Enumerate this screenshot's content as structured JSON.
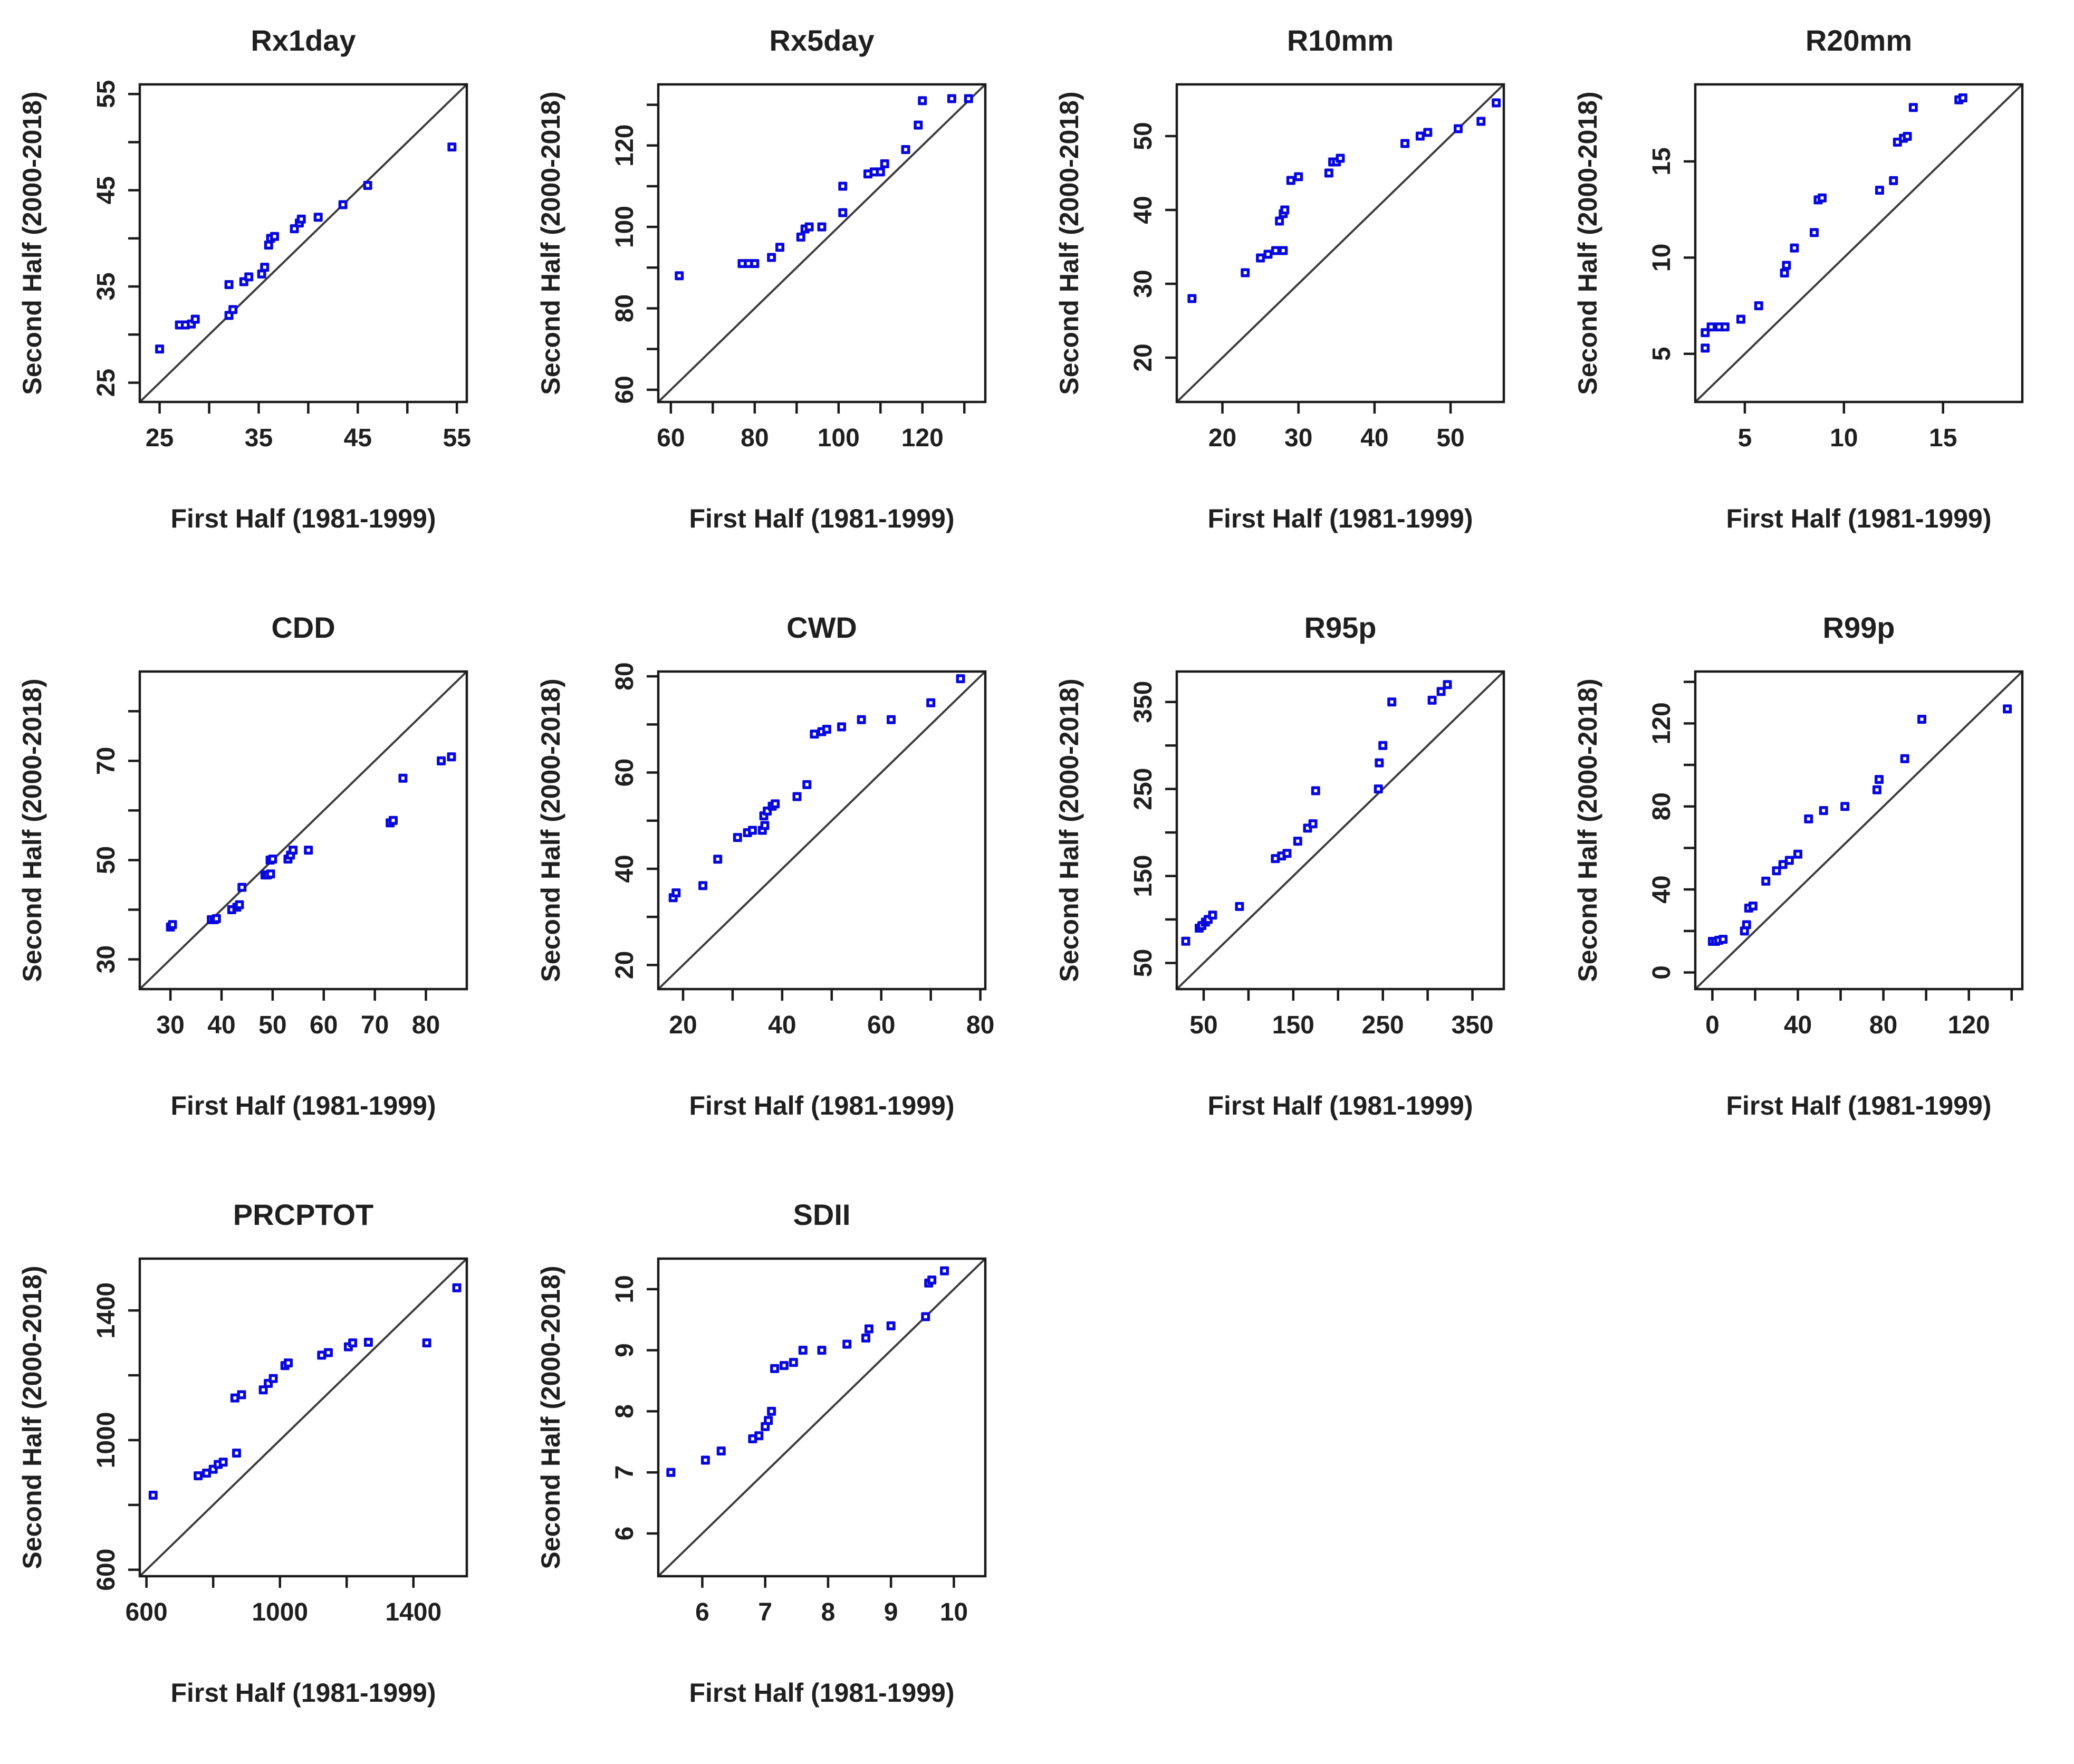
{
  "figure": {
    "description_title": "",
    "xlabel_shared": "First Half (1981-1999)",
    "ylabel_shared": "Second Half (2000-2018)"
  },
  "colors": {
    "marker": "#0808dd",
    "marker_center": "#ffffff",
    "identity_line": "#3d3d3d",
    "axis": "#1a1a1a",
    "text": "#1f1f1f",
    "background": "#ffffff"
  },
  "chart_data": [
    {
      "type": "scatter",
      "title": "Rx1day",
      "xlabel": "First Half (1981-1999)",
      "ylabel": "Second Half (2000-2018)",
      "xlim": [
        23,
        56
      ],
      "ylim": [
        23,
        56
      ],
      "xticks_all": [
        25,
        30,
        35,
        40,
        45,
        50,
        55
      ],
      "xticks_labeled": [
        25,
        35,
        45,
        55
      ],
      "yticks_all": [
        25,
        30,
        35,
        40,
        45,
        50,
        55
      ],
      "yticks_labeled": [
        25,
        35,
        45,
        55
      ],
      "identity_line": true,
      "grid": false,
      "legend": null,
      "points": [
        [
          25,
          28.5
        ],
        [
          27,
          31
        ],
        [
          27.6,
          31
        ],
        [
          28.2,
          31.1
        ],
        [
          28.6,
          31.6
        ],
        [
          32,
          32
        ],
        [
          32.4,
          32.6
        ],
        [
          32,
          35.2
        ],
        [
          33.5,
          35.5
        ],
        [
          34,
          36
        ],
        [
          35.3,
          36.3
        ],
        [
          35.6,
          37
        ],
        [
          36,
          39.3
        ],
        [
          36.2,
          40
        ],
        [
          36.6,
          40.2
        ],
        [
          38.6,
          41
        ],
        [
          39.1,
          41.6
        ],
        [
          39.3,
          42
        ],
        [
          41,
          42.2
        ],
        [
          43.5,
          43.5
        ],
        [
          46,
          45.5
        ],
        [
          54.5,
          49.5
        ]
      ]
    },
    {
      "type": "scatter",
      "title": "Rx5day",
      "xlabel": "First Half (1981-1999)",
      "ylabel": "Second Half (2000-2018)",
      "xlim": [
        57,
        135
      ],
      "ylim": [
        57,
        135
      ],
      "xticks_all": [
        60,
        70,
        80,
        90,
        100,
        110,
        120,
        130
      ],
      "xticks_labeled": [
        60,
        80,
        100,
        120
      ],
      "yticks_all": [
        60,
        70,
        80,
        90,
        100,
        110,
        120,
        130
      ],
      "yticks_labeled": [
        60,
        80,
        100,
        120
      ],
      "identity_line": true,
      "grid": false,
      "legend": null,
      "points": [
        [
          62,
          88
        ],
        [
          77,
          91
        ],
        [
          78.5,
          91
        ],
        [
          80,
          91
        ],
        [
          84,
          92.5
        ],
        [
          86,
          95
        ],
        [
          91,
          97.5
        ],
        [
          92,
          99.5
        ],
        [
          93,
          100
        ],
        [
          96,
          100
        ],
        [
          101,
          103.5
        ],
        [
          101,
          110
        ],
        [
          107,
          113
        ],
        [
          108.5,
          113.5
        ],
        [
          110,
          113.5
        ],
        [
          111,
          115.5
        ],
        [
          116,
          119
        ],
        [
          119,
          125
        ],
        [
          120,
          131
        ],
        [
          127,
          131.5
        ],
        [
          131,
          131.5
        ]
      ]
    },
    {
      "type": "scatter",
      "title": "R10mm",
      "xlabel": "First Half (1981-1999)",
      "ylabel": "Second Half (2000-2018)",
      "xlim": [
        14,
        57
      ],
      "ylim": [
        14,
        57
      ],
      "xticks_all": [
        20,
        30,
        40,
        50
      ],
      "xticks_labeled": [
        20,
        30,
        40,
        50
      ],
      "yticks_all": [
        20,
        30,
        40,
        50
      ],
      "yticks_labeled": [
        20,
        30,
        40,
        50
      ],
      "identity_line": true,
      "grid": false,
      "legend": null,
      "points": [
        [
          16,
          28
        ],
        [
          23,
          31.5
        ],
        [
          25,
          33.5
        ],
        [
          26,
          34
        ],
        [
          27,
          34.5
        ],
        [
          28,
          34.5
        ],
        [
          27.5,
          38.5
        ],
        [
          28,
          39.5
        ],
        [
          28.2,
          40
        ],
        [
          29,
          44
        ],
        [
          30,
          44.5
        ],
        [
          34,
          45
        ],
        [
          34.5,
          46.5
        ],
        [
          35,
          46.5
        ],
        [
          35.5,
          47
        ],
        [
          44,
          49
        ],
        [
          46,
          50
        ],
        [
          47,
          50.5
        ],
        [
          51,
          51
        ],
        [
          54,
          52
        ],
        [
          56,
          54.5
        ]
      ]
    },
    {
      "type": "scatter",
      "title": "R20mm",
      "xlabel": "First Half (1981-1999)",
      "ylabel": "Second Half (2000-2018)",
      "xlim": [
        2.5,
        19
      ],
      "ylim": [
        2.5,
        19
      ],
      "xticks_all": [
        5,
        10,
        15
      ],
      "xticks_labeled": [
        5,
        10,
        15
      ],
      "yticks_all": [
        5,
        10,
        15
      ],
      "yticks_labeled": [
        5,
        10,
        15
      ],
      "identity_line": true,
      "grid": false,
      "legend": null,
      "points": [
        [
          3,
          5.3
        ],
        [
          3,
          6.1
        ],
        [
          3.3,
          6.4
        ],
        [
          3.7,
          6.4
        ],
        [
          4,
          6.4
        ],
        [
          4.8,
          6.8
        ],
        [
          5.7,
          7.5
        ],
        [
          7,
          9.2
        ],
        [
          7.1,
          9.6
        ],
        [
          7.5,
          10.5
        ],
        [
          8.5,
          11.3
        ],
        [
          8.7,
          13
        ],
        [
          8.9,
          13.1
        ],
        [
          11.8,
          13.5
        ],
        [
          12.5,
          14
        ],
        [
          12.7,
          16
        ],
        [
          13,
          16.2
        ],
        [
          13.2,
          16.3
        ],
        [
          13.5,
          17.8
        ],
        [
          15.8,
          18.2
        ],
        [
          16,
          18.3
        ]
      ]
    },
    {
      "type": "scatter",
      "title": "CDD",
      "xlabel": "First Half (1981-1999)",
      "ylabel": "Second Half (2000-2018)",
      "xlim": [
        24,
        88
      ],
      "ylim": [
        24,
        88
      ],
      "xticks_all": [
        30,
        40,
        50,
        60,
        70,
        80
      ],
      "xticks_labeled": [
        30,
        40,
        50,
        60,
        70,
        80
      ],
      "yticks_all": [
        30,
        40,
        50,
        60,
        70,
        80
      ],
      "yticks_labeled": [
        30,
        50,
        70
      ],
      "identity_line": true,
      "grid": false,
      "legend": null,
      "points": [
        [
          30,
          36.5
        ],
        [
          30.4,
          37
        ],
        [
          38,
          38
        ],
        [
          38.6,
          38
        ],
        [
          39,
          38.2
        ],
        [
          42,
          40
        ],
        [
          43,
          40.5
        ],
        [
          43.5,
          41
        ],
        [
          44,
          44.5
        ],
        [
          48.5,
          47
        ],
        [
          49,
          47
        ],
        [
          49.6,
          47.2
        ],
        [
          49.5,
          50
        ],
        [
          50,
          50.2
        ],
        [
          53,
          50.2
        ],
        [
          53.5,
          51
        ],
        [
          54,
          52
        ],
        [
          57,
          52
        ],
        [
          73,
          57.5
        ],
        [
          73.6,
          58
        ],
        [
          75.5,
          66.5
        ],
        [
          83,
          70
        ],
        [
          85,
          70.8
        ]
      ]
    },
    {
      "type": "scatter",
      "title": "CWD",
      "xlabel": "First Half (1981-1999)",
      "ylabel": "Second Half (2000-2018)",
      "xlim": [
        15,
        81
      ],
      "ylim": [
        15,
        81
      ],
      "xticks_all": [
        20,
        30,
        40,
        50,
        60,
        70,
        80
      ],
      "xticks_labeled": [
        20,
        40,
        60,
        80
      ],
      "yticks_all": [
        20,
        30,
        40,
        50,
        60,
        70,
        80
      ],
      "yticks_labeled": [
        20,
        40,
        60,
        80
      ],
      "identity_line": true,
      "grid": false,
      "legend": null,
      "points": [
        [
          18,
          34
        ],
        [
          18.6,
          35
        ],
        [
          24,
          36.5
        ],
        [
          27,
          42
        ],
        [
          31,
          46.5
        ],
        [
          33,
          47.5
        ],
        [
          34,
          48
        ],
        [
          36,
          48
        ],
        [
          36.5,
          49
        ],
        [
          36.3,
          51
        ],
        [
          37,
          52
        ],
        [
          38,
          53
        ],
        [
          38.6,
          53.5
        ],
        [
          43,
          55
        ],
        [
          45,
          57.5
        ],
        [
          46.5,
          68
        ],
        [
          48,
          68.5
        ],
        [
          49,
          69
        ],
        [
          52,
          69.5
        ],
        [
          56,
          71
        ],
        [
          62,
          71
        ],
        [
          70,
          74.5
        ],
        [
          76,
          79.5
        ]
      ]
    },
    {
      "type": "scatter",
      "title": "R95p",
      "xlabel": "First Half (1981-1999)",
      "ylabel": "Second Half (2000-2018)",
      "xlim": [
        20,
        385
      ],
      "ylim": [
        20,
        385
      ],
      "xticks_all": [
        50,
        100,
        150,
        200,
        250,
        300,
        350
      ],
      "xticks_labeled": [
        50,
        150,
        250,
        350
      ],
      "yticks_all": [
        50,
        100,
        150,
        200,
        250,
        300,
        350
      ],
      "yticks_labeled": [
        50,
        150,
        250,
        350
      ],
      "identity_line": true,
      "grid": false,
      "legend": null,
      "points": [
        [
          30,
          75
        ],
        [
          45,
          90
        ],
        [
          48,
          93
        ],
        [
          52,
          97
        ],
        [
          55,
          100
        ],
        [
          60,
          105
        ],
        [
          90,
          115
        ],
        [
          130,
          170
        ],
        [
          137,
          173
        ],
        [
          143,
          176
        ],
        [
          155,
          190
        ],
        [
          166,
          205
        ],
        [
          172,
          210
        ],
        [
          175,
          248
        ],
        [
          245,
          250
        ],
        [
          246,
          280
        ],
        [
          250,
          300
        ],
        [
          260,
          350
        ],
        [
          305,
          352
        ],
        [
          315,
          362
        ],
        [
          322,
          370
        ]
      ]
    },
    {
      "type": "scatter",
      "title": "R99p",
      "xlabel": "First Half (1981-1999)",
      "ylabel": "Second Half (2000-2018)",
      "xlim": [
        -8,
        145
      ],
      "ylim": [
        -8,
        145
      ],
      "xticks_all": [
        0,
        20,
        40,
        60,
        80,
        100,
        120,
        140
      ],
      "xticks_labeled": [
        0,
        40,
        80,
        120
      ],
      "yticks_all": [
        0,
        20,
        40,
        60,
        80,
        100,
        120,
        140
      ],
      "yticks_labeled": [
        0,
        40,
        80,
        120
      ],
      "identity_line": true,
      "grid": false,
      "legend": null,
      "points": [
        [
          0,
          15
        ],
        [
          1.5,
          15
        ],
        [
          3,
          15.5
        ],
        [
          5,
          16
        ],
        [
          15,
          20
        ],
        [
          16,
          23
        ],
        [
          17,
          31
        ],
        [
          19,
          32
        ],
        [
          25,
          44
        ],
        [
          30,
          49
        ],
        [
          33,
          52
        ],
        [
          36,
          54
        ],
        [
          40,
          57
        ],
        [
          45,
          74
        ],
        [
          52,
          78
        ],
        [
          62,
          80
        ],
        [
          77,
          88
        ],
        [
          78,
          93
        ],
        [
          90,
          103
        ],
        [
          98,
          122
        ],
        [
          138,
          127
        ]
      ]
    },
    {
      "type": "scatter",
      "title": "PRCPTOT",
      "xlabel": "First Half (1981-1999)",
      "ylabel": "Second Half (2000-2018)",
      "xlim": [
        580,
        1560
      ],
      "ylim": [
        580,
        1560
      ],
      "xticks_all": [
        600,
        800,
        1000,
        1200,
        1400
      ],
      "xticks_labeled": [
        600,
        1000,
        1400
      ],
      "yticks_all": [
        600,
        800,
        1000,
        1200,
        1400
      ],
      "yticks_labeled": [
        600,
        1000,
        1400
      ],
      "identity_line": true,
      "grid": false,
      "legend": null,
      "points": [
        [
          620,
          830
        ],
        [
          755,
          890
        ],
        [
          780,
          898
        ],
        [
          800,
          910
        ],
        [
          815,
          925
        ],
        [
          830,
          932
        ],
        [
          870,
          960
        ],
        [
          865,
          1130
        ],
        [
          885,
          1140
        ],
        [
          950,
          1155
        ],
        [
          965,
          1175
        ],
        [
          980,
          1190
        ],
        [
          1015,
          1230
        ],
        [
          1025,
          1238
        ],
        [
          1125,
          1262
        ],
        [
          1145,
          1270
        ],
        [
          1205,
          1288
        ],
        [
          1218,
          1300
        ],
        [
          1265,
          1302
        ],
        [
          1440,
          1300
        ],
        [
          1530,
          1470
        ]
      ]
    },
    {
      "type": "scatter",
      "title": "SDII",
      "xlabel": "First Half (1981-1999)",
      "ylabel": "Second Half (2000-2018)",
      "xlim": [
        5.3,
        10.5
      ],
      "ylim": [
        5.3,
        10.5
      ],
      "xticks_all": [
        6,
        7,
        8,
        9,
        10
      ],
      "xticks_labeled": [
        6,
        7,
        8,
        9,
        10
      ],
      "yticks_all": [
        6,
        7,
        8,
        9,
        10
      ],
      "yticks_labeled": [
        6,
        7,
        8,
        9,
        10
      ],
      "identity_line": true,
      "grid": false,
      "legend": null,
      "points": [
        [
          5.5,
          7.0
        ],
        [
          6.05,
          7.2
        ],
        [
          6.3,
          7.35
        ],
        [
          6.8,
          7.55
        ],
        [
          6.9,
          7.6
        ],
        [
          7.0,
          7.75
        ],
        [
          7.05,
          7.85
        ],
        [
          7.1,
          8.0
        ],
        [
          7.15,
          8.7
        ],
        [
          7.3,
          8.75
        ],
        [
          7.45,
          8.8
        ],
        [
          7.6,
          9.0
        ],
        [
          7.9,
          9.0
        ],
        [
          8.3,
          9.1
        ],
        [
          8.6,
          9.2
        ],
        [
          8.65,
          9.35
        ],
        [
          9.0,
          9.4
        ],
        [
          9.55,
          9.55
        ],
        [
          9.6,
          10.1
        ],
        [
          9.65,
          10.15
        ],
        [
          9.85,
          10.3
        ]
      ]
    }
  ]
}
